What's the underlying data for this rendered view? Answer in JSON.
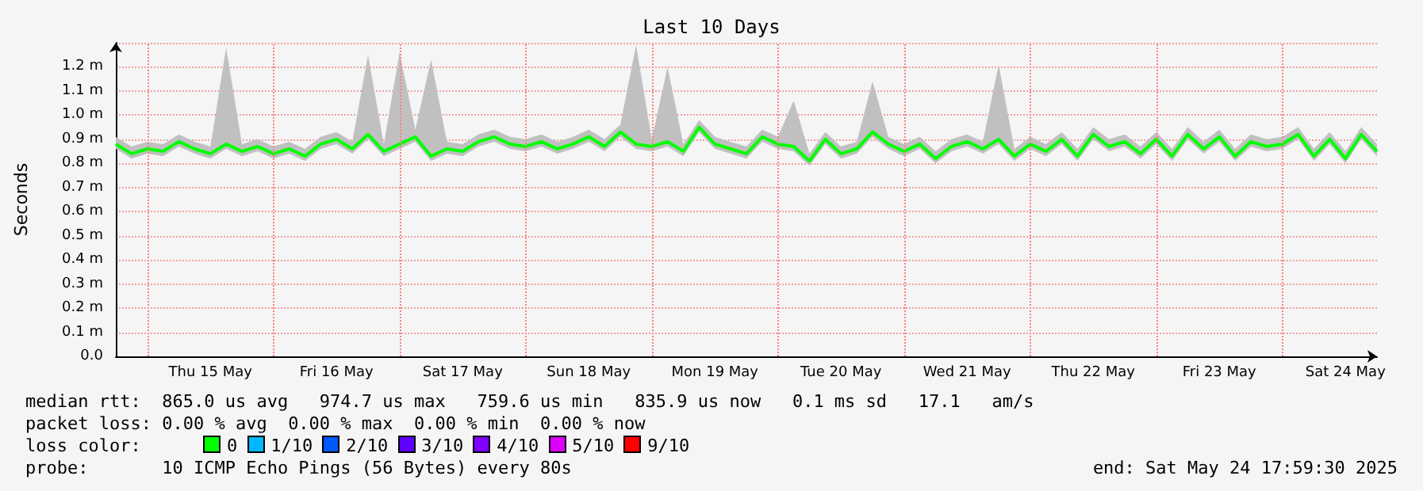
{
  "chart_data": {
    "type": "line",
    "title": "Last 10 Days",
    "ylabel": "Seconds",
    "x": [
      "2025-05-14T18:00",
      "2025-05-14T21:00",
      "2025-05-15T00:00",
      "2025-05-15T03:00",
      "2025-05-15T06:00",
      "2025-05-15T09:00",
      "2025-05-15T12:00",
      "2025-05-15T15:00",
      "2025-05-15T18:00",
      "2025-05-15T21:00",
      "2025-05-16T00:00",
      "2025-05-16T03:00",
      "2025-05-16T06:00",
      "2025-05-16T09:00",
      "2025-05-16T12:00",
      "2025-05-16T15:00",
      "2025-05-16T18:00",
      "2025-05-16T21:00",
      "2025-05-17T00:00",
      "2025-05-17T03:00",
      "2025-05-17T06:00",
      "2025-05-17T09:00",
      "2025-05-17T12:00",
      "2025-05-17T15:00",
      "2025-05-17T18:00",
      "2025-05-17T21:00",
      "2025-05-18T00:00",
      "2025-05-18T03:00",
      "2025-05-18T06:00",
      "2025-05-18T09:00",
      "2025-05-18T12:00",
      "2025-05-18T15:00",
      "2025-05-18T18:00",
      "2025-05-18T21:00",
      "2025-05-19T00:00",
      "2025-05-19T03:00",
      "2025-05-19T06:00",
      "2025-05-19T09:00",
      "2025-05-19T12:00",
      "2025-05-19T15:00",
      "2025-05-19T18:00",
      "2025-05-19T21:00",
      "2025-05-20T00:00",
      "2025-05-20T03:00",
      "2025-05-20T06:00",
      "2025-05-20T09:00",
      "2025-05-20T12:00",
      "2025-05-20T15:00",
      "2025-05-20T18:00",
      "2025-05-20T21:00",
      "2025-05-21T00:00",
      "2025-05-21T03:00",
      "2025-05-21T06:00",
      "2025-05-21T09:00",
      "2025-05-21T12:00",
      "2025-05-21T15:00",
      "2025-05-21T18:00",
      "2025-05-21T21:00",
      "2025-05-22T00:00",
      "2025-05-22T03:00",
      "2025-05-22T06:00",
      "2025-05-22T09:00",
      "2025-05-22T12:00",
      "2025-05-22T15:00",
      "2025-05-22T18:00",
      "2025-05-22T21:00",
      "2025-05-23T00:00",
      "2025-05-23T03:00",
      "2025-05-23T06:00",
      "2025-05-23T09:00",
      "2025-05-23T12:00",
      "2025-05-23T15:00",
      "2025-05-23T18:00",
      "2025-05-23T21:00",
      "2025-05-24T00:00",
      "2025-05-24T03:00",
      "2025-05-24T06:00",
      "2025-05-24T09:00",
      "2025-05-24T12:00",
      "2025-05-24T15:00",
      "2025-05-24T18:00"
    ],
    "series": [
      {
        "name": "0",
        "color": "#00ff00",
        "values": [
          0.88,
          0.84,
          0.86,
          0.85,
          0.89,
          0.86,
          0.84,
          0.88,
          0.85,
          0.87,
          0.84,
          0.86,
          0.83,
          0.88,
          0.9,
          0.86,
          0.92,
          0.85,
          0.88,
          0.91,
          0.83,
          0.86,
          0.85,
          0.89,
          0.91,
          0.88,
          0.87,
          0.89,
          0.86,
          0.88,
          0.91,
          0.87,
          0.93,
          0.88,
          0.87,
          0.89,
          0.85,
          0.95,
          0.88,
          0.86,
          0.84,
          0.91,
          0.88,
          0.87,
          0.81,
          0.9,
          0.84,
          0.86,
          0.93,
          0.88,
          0.85,
          0.88,
          0.82,
          0.87,
          0.89,
          0.86,
          0.9,
          0.83,
          0.88,
          0.85,
          0.9,
          0.83,
          0.92,
          0.87,
          0.89,
          0.84,
          0.9,
          0.83,
          0.92,
          0.86,
          0.91,
          0.83,
          0.89,
          0.87,
          0.88,
          0.92,
          0.83,
          0.9,
          0.82,
          0.92,
          0.85
        ],
        "lower": [
          0.86,
          0.82,
          0.84,
          0.83,
          0.87,
          0.84,
          0.82,
          0.86,
          0.83,
          0.85,
          0.82,
          0.84,
          0.81,
          0.86,
          0.88,
          0.84,
          0.9,
          0.83,
          0.86,
          0.89,
          0.81,
          0.84,
          0.83,
          0.87,
          0.89,
          0.86,
          0.85,
          0.87,
          0.84,
          0.86,
          0.89,
          0.85,
          0.91,
          0.86,
          0.85,
          0.87,
          0.83,
          0.93,
          0.86,
          0.84,
          0.82,
          0.89,
          0.86,
          0.85,
          0.79,
          0.88,
          0.82,
          0.84,
          0.91,
          0.86,
          0.83,
          0.86,
          0.8,
          0.85,
          0.87,
          0.84,
          0.88,
          0.81,
          0.86,
          0.83,
          0.88,
          0.81,
          0.9,
          0.85,
          0.87,
          0.82,
          0.88,
          0.81,
          0.9,
          0.84,
          0.89,
          0.81,
          0.87,
          0.85,
          0.86,
          0.9,
          0.81,
          0.88,
          0.8,
          0.9,
          0.83
        ],
        "upper": [
          0.91,
          0.87,
          0.89,
          0.88,
          0.92,
          0.89,
          0.87,
          1.28,
          0.88,
          0.9,
          0.87,
          0.89,
          0.86,
          0.91,
          0.93,
          0.89,
          1.25,
          0.88,
          1.26,
          0.94,
          1.23,
          0.89,
          0.88,
          0.92,
          0.94,
          0.91,
          0.9,
          0.92,
          0.89,
          0.91,
          0.94,
          0.9,
          0.96,
          1.29,
          0.9,
          1.2,
          0.88,
          0.98,
          0.91,
          0.89,
          0.87,
          0.94,
          0.91,
          1.06,
          0.84,
          0.93,
          0.87,
          0.89,
          1.14,
          0.91,
          0.88,
          0.91,
          0.85,
          0.9,
          0.92,
          0.89,
          1.21,
          0.86,
          0.91,
          0.88,
          0.93,
          0.86,
          0.95,
          0.9,
          0.92,
          0.87,
          0.93,
          0.86,
          0.95,
          0.89,
          0.94,
          0.86,
          0.92,
          0.9,
          0.91,
          0.95,
          0.86,
          0.93,
          0.85,
          0.95,
          0.88
        ]
      },
      {
        "name": "1/10",
        "color": "#00b8ff",
        "values": [
          null,
          null,
          null,
          null,
          null,
          null,
          null,
          null,
          null,
          null,
          null,
          null,
          null,
          null,
          null,
          null,
          null,
          null,
          null,
          null,
          null,
          null,
          null,
          null,
          null,
          null,
          null,
          null,
          null,
          null,
          null,
          null,
          null,
          null,
          null,
          null,
          null,
          null,
          null,
          null,
          null,
          null,
          null,
          null,
          null,
          null,
          null,
          null,
          null,
          null,
          null,
          null,
          null,
          null,
          null,
          null,
          null,
          null,
          null,
          null,
          null,
          null,
          null,
          null,
          null,
          null,
          null,
          null,
          null,
          null,
          null,
          null,
          null,
          null,
          null,
          null,
          null,
          null,
          null,
          null,
          null
        ]
      },
      {
        "name": "2/10",
        "color": "#0059ff",
        "values": [
          null,
          null,
          null,
          null,
          null,
          null,
          null,
          null,
          null,
          null,
          null,
          null,
          null,
          null,
          null,
          null,
          null,
          null,
          null,
          null,
          null,
          null,
          null,
          null,
          null,
          null,
          null,
          null,
          null,
          null,
          null,
          null,
          null,
          null,
          null,
          null,
          null,
          null,
          null,
          null,
          null,
          null,
          null,
          null,
          null,
          null,
          null,
          null,
          null,
          null,
          null,
          null,
          null,
          null,
          null,
          null,
          null,
          null,
          null,
          null,
          null,
          null,
          null,
          null,
          null,
          null,
          null,
          null,
          null,
          null,
          null,
          null,
          null,
          null,
          null,
          null,
          null,
          null,
          null,
          null,
          null
        ]
      },
      {
        "name": "3/10",
        "color": "#5e00ff",
        "values": [
          null,
          null,
          null,
          null,
          null,
          null,
          null,
          null,
          null,
          null,
          null,
          null,
          null,
          null,
          null,
          null,
          null,
          null,
          null,
          null,
          null,
          null,
          null,
          null,
          null,
          null,
          null,
          null,
          null,
          null,
          null,
          null,
          null,
          null,
          null,
          null,
          null,
          null,
          null,
          null,
          null,
          null,
          null,
          null,
          null,
          null,
          null,
          null,
          null,
          null,
          null,
          null,
          null,
          null,
          null,
          null,
          null,
          null,
          null,
          null,
          null,
          null,
          null,
          null,
          null,
          null,
          null,
          null,
          null,
          null,
          null,
          null,
          null,
          null,
          null,
          null,
          null,
          null,
          null,
          null,
          null
        ]
      },
      {
        "name": "4/10",
        "color": "#7e00ff",
        "values": [
          null,
          null,
          null,
          null,
          null,
          null,
          null,
          null,
          null,
          null,
          null,
          null,
          null,
          null,
          null,
          null,
          null,
          null,
          null,
          null,
          null,
          null,
          null,
          null,
          null,
          null,
          null,
          null,
          null,
          null,
          null,
          null,
          null,
          null,
          null,
          null,
          null,
          null,
          null,
          null,
          null,
          null,
          null,
          null,
          null,
          null,
          null,
          null,
          null,
          null,
          null,
          null,
          null,
          null,
          null,
          null,
          null,
          null,
          null,
          null,
          null,
          null,
          null,
          null,
          null,
          null,
          null,
          null,
          null,
          null,
          null,
          null,
          null,
          null,
          null,
          null,
          null,
          null,
          null,
          null,
          null
        ]
      },
      {
        "name": "5/10",
        "color": "#dd00ff",
        "values": [
          null,
          null,
          null,
          null,
          null,
          null,
          null,
          null,
          null,
          null,
          null,
          null,
          null,
          null,
          null,
          null,
          null,
          null,
          null,
          null,
          null,
          null,
          null,
          null,
          null,
          null,
          null,
          null,
          null,
          null,
          null,
          null,
          null,
          null,
          null,
          null,
          null,
          null,
          null,
          null,
          null,
          null,
          null,
          null,
          null,
          null,
          null,
          null,
          null,
          null,
          null,
          null,
          null,
          null,
          null,
          null,
          null,
          null,
          null,
          null,
          null,
          null,
          null,
          null,
          null,
          null,
          null,
          null,
          null,
          null,
          null,
          null,
          null,
          null,
          null,
          null,
          null,
          null,
          null,
          null,
          null
        ]
      },
      {
        "name": "9/10",
        "color": "#ff0000",
        "values": [
          null,
          null,
          null,
          null,
          null,
          null,
          null,
          null,
          null,
          null,
          null,
          null,
          null,
          null,
          null,
          null,
          null,
          null,
          null,
          null,
          null,
          null,
          null,
          null,
          null,
          null,
          null,
          null,
          null,
          null,
          null,
          null,
          null,
          null,
          null,
          null,
          null,
          null,
          null,
          null,
          null,
          null,
          null,
          null,
          null,
          null,
          null,
          null,
          null,
          null,
          null,
          null,
          null,
          null,
          null,
          null,
          null,
          null,
          null,
          null,
          null,
          null,
          null,
          null,
          null,
          null,
          null,
          null,
          null,
          null,
          null,
          null,
          null,
          null,
          null,
          null,
          null,
          null,
          null,
          null,
          null
        ]
      }
    ],
    "legend": "bottom left",
    "legend_title": "loss color:",
    "xlim": [
      "2025-05-14T18:00",
      "2025-05-24T18:00"
    ],
    "xticks": [
      {
        "value": "2025-05-15T12:00",
        "label": "Thu 15 May"
      },
      {
        "value": "2025-05-16T12:00",
        "label": "Fri 16 May"
      },
      {
        "value": "2025-05-17T12:00",
        "label": "Sat 17 May"
      },
      {
        "value": "2025-05-18T12:00",
        "label": "Sun 18 May"
      },
      {
        "value": "2025-05-19T12:00",
        "label": "Mon 19 May"
      },
      {
        "value": "2025-05-20T12:00",
        "label": "Tue 20 May"
      },
      {
        "value": "2025-05-21T12:00",
        "label": "Wed 21 May"
      },
      {
        "value": "2025-05-22T12:00",
        "label": "Thu 22 May"
      },
      {
        "value": "2025-05-23T12:00",
        "label": "Fri 23 May"
      },
      {
        "value": "2025-05-24T12:00",
        "label": "Sat 24 May"
      }
    ],
    "ylim": [
      0,
      1.3
    ],
    "yticks": [
      {
        "value": 0,
        "label": "0.0"
      },
      {
        "value": 0.1,
        "label": "0.1 m"
      },
      {
        "value": 0.2,
        "label": "0.2 m"
      },
      {
        "value": 0.3,
        "label": "0.3 m"
      },
      {
        "value": 0.4,
        "label": "0.4 m"
      },
      {
        "value": 0.5,
        "label": "0.5 m"
      },
      {
        "value": 0.6,
        "label": "0.6 m"
      },
      {
        "value": 0.7,
        "label": "0.7 m"
      },
      {
        "value": 0.8,
        "label": "0.8 m"
      },
      {
        "value": 0.9,
        "label": "0.9 m"
      },
      {
        "value": 1.0,
        "label": "1.0 m"
      },
      {
        "value": 1.1,
        "label": "1.1 m"
      },
      {
        "value": 1.2,
        "label": "1.2 m"
      }
    ],
    "ref_lines": [
      {
        "axis": "x",
        "value": "2025-05-15T00:00",
        "color": "#ff8080",
        "line_style": "dotted"
      },
      {
        "axis": "x",
        "value": "2025-05-16T00:00",
        "color": "#ff8080",
        "line_style": "dotted"
      },
      {
        "axis": "x",
        "value": "2025-05-17T00:00",
        "color": "#ff8080",
        "line_style": "dotted"
      },
      {
        "axis": "x",
        "value": "2025-05-18T00:00",
        "color": "#ff8080",
        "line_style": "dotted"
      },
      {
        "axis": "x",
        "value": "2025-05-19T00:00",
        "color": "#ff8080",
        "line_style": "dotted"
      },
      {
        "axis": "x",
        "value": "2025-05-20T00:00",
        "color": "#ff8080",
        "line_style": "dotted"
      },
      {
        "axis": "x",
        "value": "2025-05-21T00:00",
        "color": "#ff8080",
        "line_style": "dotted"
      },
      {
        "axis": "x",
        "value": "2025-05-22T00:00",
        "color": "#ff8080",
        "line_style": "dotted"
      },
      {
        "axis": "x",
        "value": "2025-05-23T00:00",
        "color": "#ff8080",
        "line_style": "dotted"
      },
      {
        "axis": "x",
        "value": "2025-05-24T00:00",
        "color": "#ff8080",
        "line_style": "dotted"
      }
    ],
    "grid": "y",
    "marker": "none",
    "line_style": "solid",
    "annotations": [
      "median rtt:  865.0 us avg   974.7 us max   759.6 us min   835.9 us now   0.1 ms sd   17.1   am/s",
      "packet loss: 0.00 % avg  0.00 % max  0.00 % min  0.00 % now",
      "probe:       10 ICMP Echo Pings (56 Bytes) every 80s",
      "end: Sat May 24 17:59:30 2025"
    ]
  }
}
